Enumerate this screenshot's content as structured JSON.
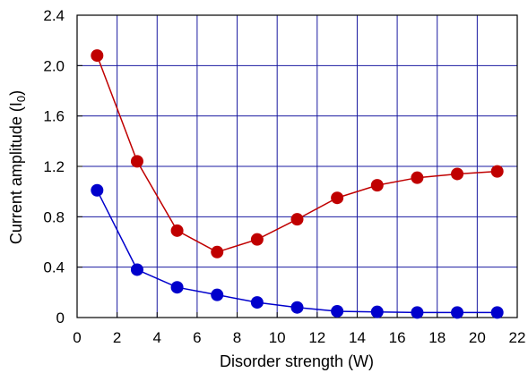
{
  "chart_data": {
    "type": "line",
    "title": "",
    "xlabel": "Disorder strength (W)",
    "ylabel_main": "Current amplitude (I",
    "ylabel_sub": "0",
    "ylabel_close": ")",
    "xlim": [
      0,
      22
    ],
    "ylim": [
      0,
      2.4
    ],
    "xticks": [
      0,
      2,
      4,
      6,
      8,
      10,
      12,
      14,
      16,
      18,
      20,
      22
    ],
    "xtick_labels": [
      "0",
      "2",
      "4",
      "6",
      "8",
      "10",
      "12",
      "14",
      "16",
      "18",
      "20",
      "22"
    ],
    "yticks": [
      0,
      0.4,
      0.8,
      1.2,
      1.6,
      2.0,
      2.4
    ],
    "ytick_labels": [
      "0",
      "0.4",
      "0.8",
      "1.2",
      "1.6",
      "2.0",
      "2.4"
    ],
    "grid": true,
    "grid_color": "#1a1aa0",
    "x": [
      1,
      3,
      5,
      7,
      9,
      11,
      13,
      15,
      17,
      19,
      21
    ],
    "series": [
      {
        "color": "#c00000",
        "values": [
          2.08,
          1.24,
          0.69,
          0.52,
          0.62,
          0.78,
          0.95,
          1.05,
          1.11,
          1.14,
          1.16
        ]
      },
      {
        "color": "#0000cc",
        "values": [
          1.01,
          0.38,
          0.24,
          0.18,
          0.12,
          0.08,
          0.05,
          0.045,
          0.04,
          0.04,
          0.04
        ]
      }
    ]
  }
}
